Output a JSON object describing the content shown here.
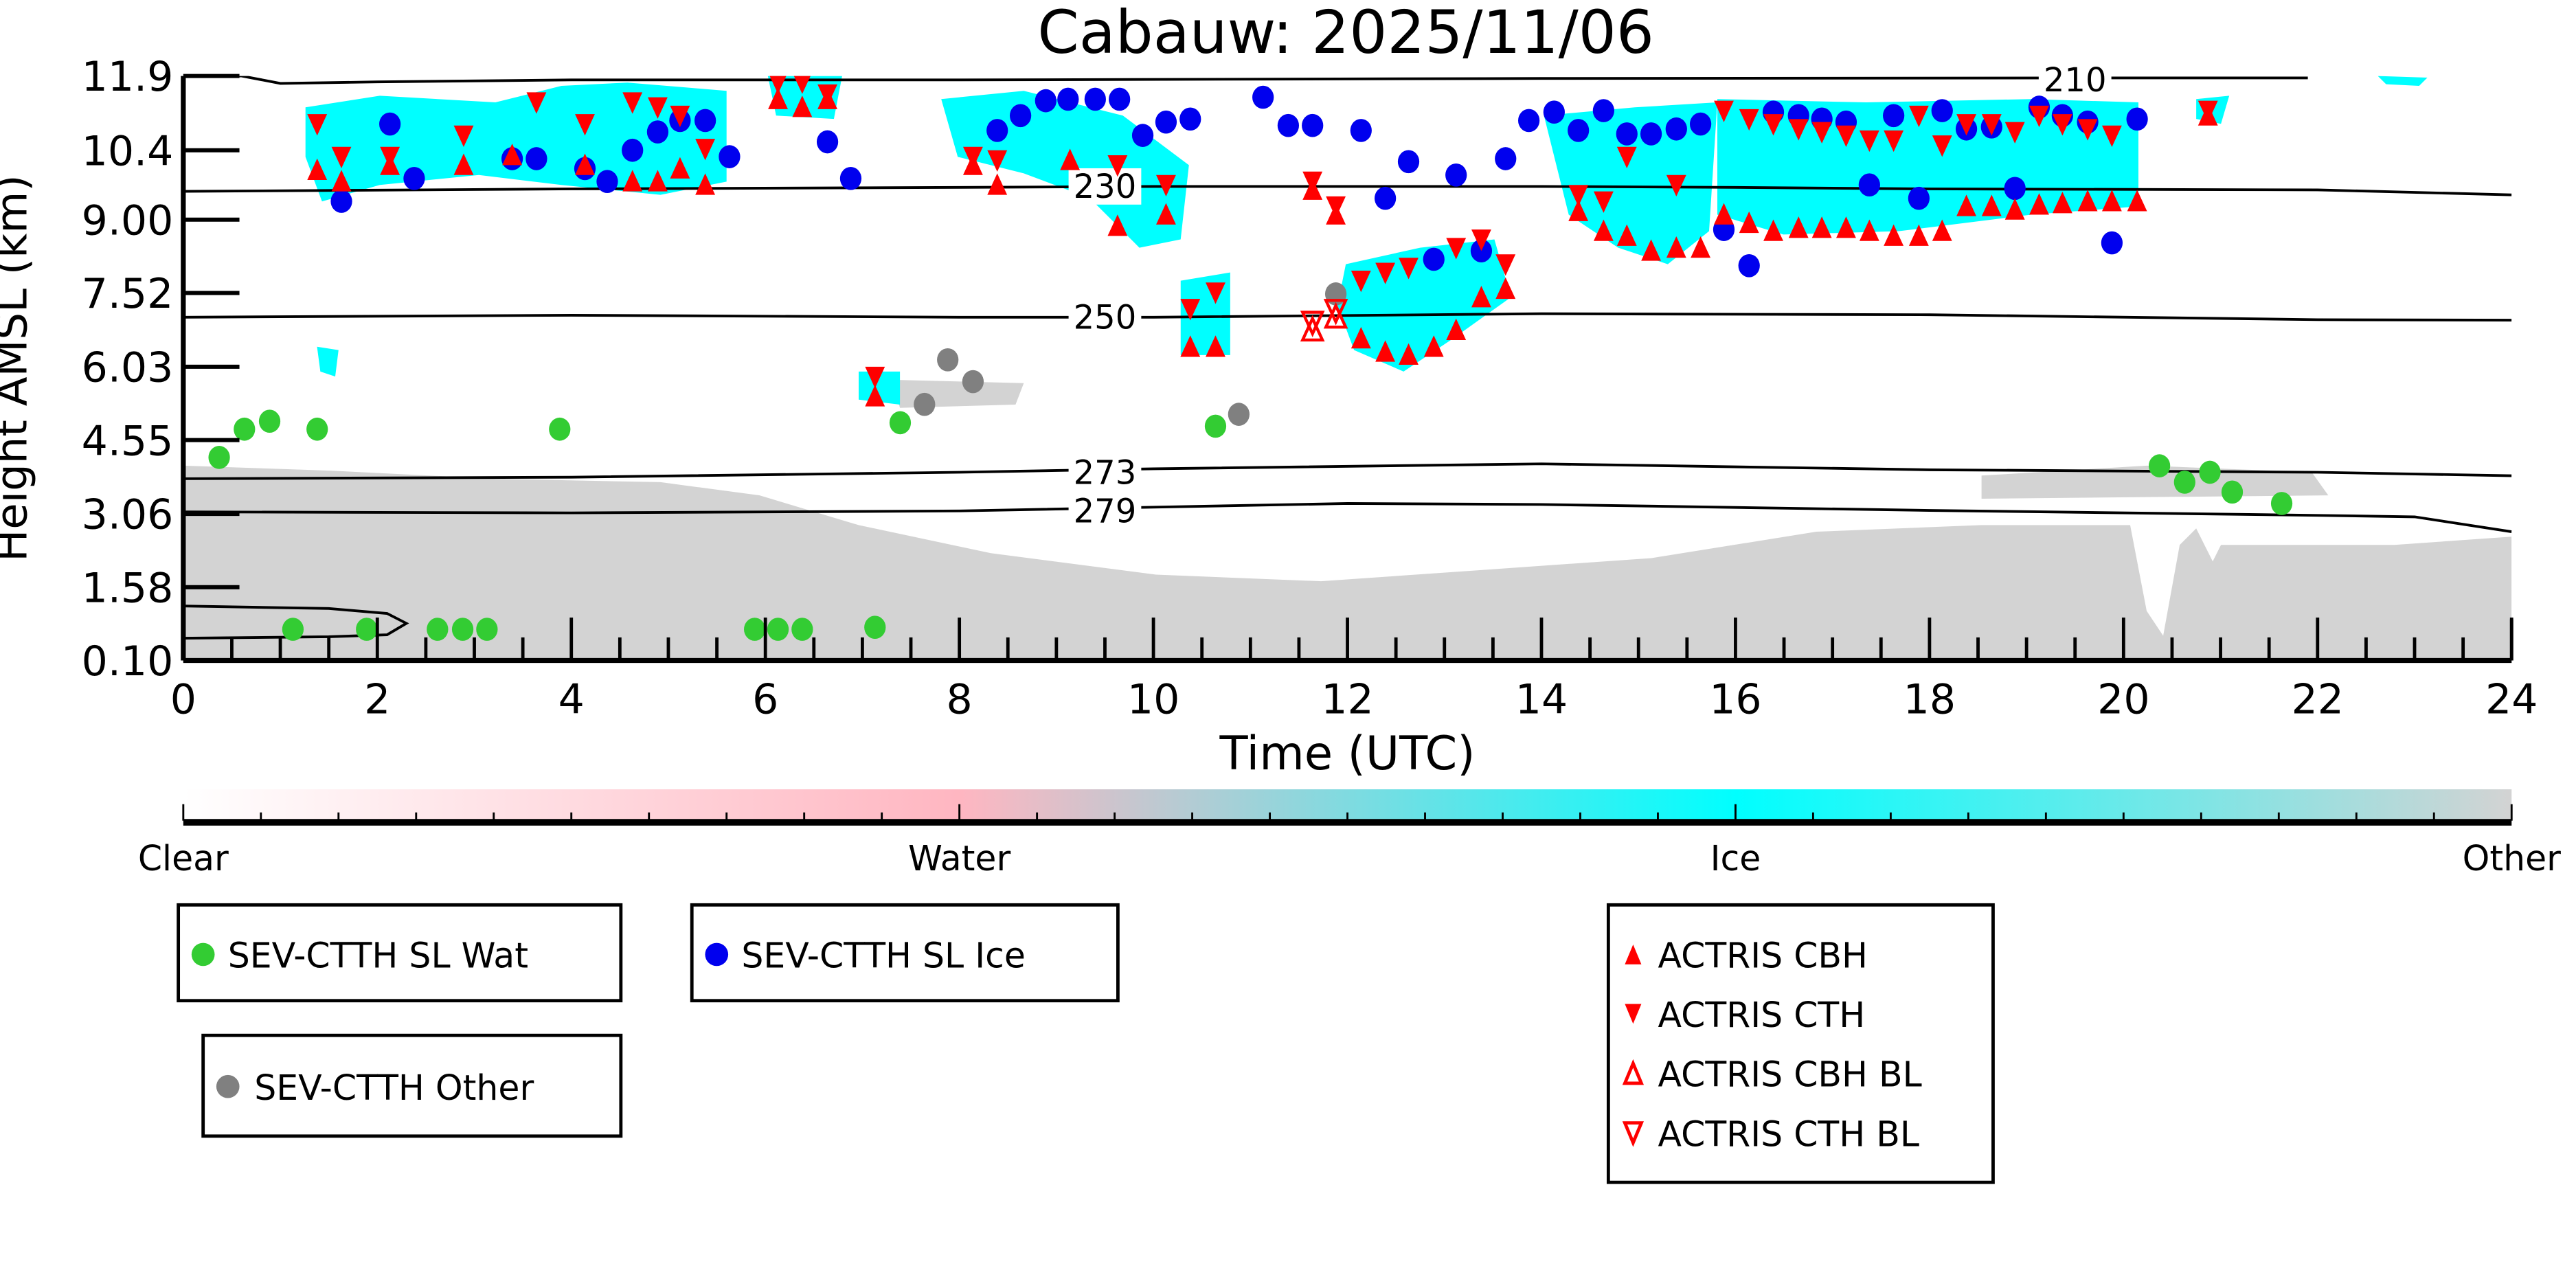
{
  "chart_data": {
    "type": "scatter",
    "title": "Cabauw: 2025/11/06",
    "xlabel": "Time (UTC)",
    "ylabel": "Height AMSL (km)",
    "xlim": [
      0,
      24
    ],
    "ylim": [
      0.1,
      11.9
    ],
    "x_ticks": [
      "0",
      "2",
      "4",
      "6",
      "8",
      "10",
      "12",
      "14",
      "16",
      "18",
      "20",
      "22",
      "24"
    ],
    "x_tick_values": [
      0,
      2,
      4,
      6,
      8,
      10,
      12,
      14,
      16,
      18,
      20,
      22,
      24
    ],
    "y_ticks": [
      "0.10",
      "1.58",
      "3.06",
      "4.55",
      "6.03",
      "7.52",
      "9.00",
      "10.4",
      "11.9"
    ],
    "y_tick_values": [
      0.1,
      1.58,
      3.06,
      4.55,
      6.03,
      7.52,
      9.0,
      10.4,
      11.9
    ],
    "colorbar": {
      "labels": [
        "Clear",
        "Water",
        "Ice",
        "Other"
      ],
      "colors": [
        "#ffffff",
        "#ffb6c1",
        "#00ffff",
        "#d3d3d3"
      ]
    },
    "temperature_contours": [
      {
        "label": "210",
        "points": [
          [
            0,
            11.9
          ],
          [
            0.6,
            11.9
          ],
          [
            1.0,
            11.75
          ],
          [
            2.0,
            11.78
          ],
          [
            4.0,
            11.82
          ],
          [
            8.0,
            11.82
          ],
          [
            14.0,
            11.85
          ],
          [
            19.5,
            11.86
          ],
          [
            21.9,
            11.86
          ]
        ],
        "label_at": [
          19.5,
          11.82
        ]
      },
      {
        "label": "230",
        "points": [
          [
            0,
            9.57
          ],
          [
            4,
            9.62
          ],
          [
            8,
            9.65
          ],
          [
            10,
            9.67
          ],
          [
            14,
            9.67
          ],
          [
            16,
            9.65
          ],
          [
            18,
            9.62
          ],
          [
            22,
            9.6
          ],
          [
            24,
            9.5
          ]
        ],
        "label_at": [
          9.5,
          9.67
        ]
      },
      {
        "label": "250",
        "points": [
          [
            0,
            7.03
          ],
          [
            4,
            7.07
          ],
          [
            8,
            7.03
          ],
          [
            10,
            7.03
          ],
          [
            14,
            7.1
          ],
          [
            18,
            7.08
          ],
          [
            22,
            6.98
          ],
          [
            24,
            6.97
          ]
        ],
        "label_at": [
          9.5,
          7.03
        ]
      },
      {
        "label": "273",
        "points": [
          [
            0,
            3.77
          ],
          [
            4,
            3.8
          ],
          [
            8,
            3.9
          ],
          [
            10,
            3.97
          ],
          [
            14,
            4.07
          ],
          [
            18,
            3.95
          ],
          [
            22,
            3.9
          ],
          [
            24,
            3.83
          ]
        ],
        "label_at": [
          9.5,
          3.9
        ]
      },
      {
        "label": "279",
        "points": [
          [
            0,
            3.1
          ],
          [
            4,
            3.08
          ],
          [
            8,
            3.12
          ],
          [
            12,
            3.27
          ],
          [
            14,
            3.25
          ],
          [
            18,
            3.13
          ],
          [
            22,
            3.03
          ],
          [
            23,
            3.0
          ],
          [
            24,
            2.7
          ]
        ],
        "label_at": [
          9.5,
          3.12
        ]
      },
      {
        "label": "",
        "points": [
          [
            0,
            1.2
          ],
          [
            1.5,
            1.15
          ],
          [
            2.1,
            1.05
          ],
          [
            2.3,
            0.85
          ],
          [
            2.1,
            0.62
          ],
          [
            1.5,
            0.58
          ],
          [
            0,
            0.55
          ]
        ],
        "label_at": null
      }
    ],
    "series": [
      {
        "name": "SEV-CTTH SL Wat",
        "marker": "circle",
        "color": "#33cc33",
        "points": [
          [
            0.37,
            4.2
          ],
          [
            0.63,
            4.77
          ],
          [
            0.89,
            4.93
          ],
          [
            1.38,
            4.77
          ],
          [
            3.88,
            4.77
          ],
          [
            7.39,
            4.9
          ],
          [
            10.64,
            4.83
          ],
          [
            20.37,
            4.03
          ],
          [
            20.63,
            3.7
          ],
          [
            20.89,
            3.9
          ],
          [
            21.12,
            3.5
          ],
          [
            21.63,
            3.27
          ],
          [
            1.13,
            0.73
          ],
          [
            1.89,
            0.73
          ],
          [
            2.62,
            0.73
          ],
          [
            2.88,
            0.73
          ],
          [
            3.13,
            0.73
          ],
          [
            5.89,
            0.73
          ],
          [
            6.13,
            0.73
          ],
          [
            6.38,
            0.73
          ],
          [
            7.13,
            0.77
          ]
        ]
      },
      {
        "name": "SEV-CTTH SL Ice",
        "marker": "circle",
        "color": "#0000ee",
        "points": [
          [
            1.63,
            9.37
          ],
          [
            2.13,
            10.93
          ],
          [
            2.38,
            9.83
          ],
          [
            3.39,
            10.23
          ],
          [
            3.64,
            10.23
          ],
          [
            4.14,
            10.03
          ],
          [
            4.37,
            9.77
          ],
          [
            4.63,
            10.4
          ],
          [
            4.89,
            10.77
          ],
          [
            5.12,
            11.0
          ],
          [
            5.38,
            11.0
          ],
          [
            5.63,
            10.27
          ],
          [
            6.64,
            10.57
          ],
          [
            6.88,
            9.83
          ],
          [
            8.39,
            10.8
          ],
          [
            8.63,
            11.1
          ],
          [
            8.89,
            11.4
          ],
          [
            9.12,
            11.43
          ],
          [
            9.4,
            11.43
          ],
          [
            9.65,
            11.43
          ],
          [
            9.89,
            10.7
          ],
          [
            10.13,
            10.97
          ],
          [
            10.38,
            11.03
          ],
          [
            11.13,
            11.47
          ],
          [
            11.39,
            10.9
          ],
          [
            11.64,
            10.9
          ],
          [
            12.14,
            10.8
          ],
          [
            12.39,
            9.43
          ],
          [
            12.63,
            10.17
          ],
          [
            12.89,
            8.2
          ],
          [
            13.12,
            9.9
          ],
          [
            13.38,
            8.37
          ],
          [
            13.63,
            10.23
          ],
          [
            13.87,
            11.0
          ],
          [
            14.13,
            11.17
          ],
          [
            14.38,
            10.8
          ],
          [
            14.64,
            11.2
          ],
          [
            14.88,
            10.73
          ],
          [
            15.13,
            10.73
          ],
          [
            15.39,
            10.83
          ],
          [
            15.64,
            10.93
          ],
          [
            15.88,
            8.8
          ],
          [
            16.14,
            8.07
          ],
          [
            16.39,
            11.17
          ],
          [
            16.65,
            11.1
          ],
          [
            16.89,
            11.03
          ],
          [
            17.14,
            10.97
          ],
          [
            17.38,
            9.7
          ],
          [
            17.63,
            11.1
          ],
          [
            17.89,
            9.43
          ],
          [
            18.13,
            11.2
          ],
          [
            18.38,
            10.83
          ],
          [
            18.64,
            10.87
          ],
          [
            18.88,
            9.63
          ],
          [
            19.13,
            11.27
          ],
          [
            19.37,
            11.1
          ],
          [
            19.63,
            10.97
          ],
          [
            19.88,
            8.53
          ],
          [
            20.14,
            11.03
          ]
        ]
      },
      {
        "name": "SEV-CTTH Other",
        "marker": "circle",
        "color": "#808080",
        "points": [
          [
            7.64,
            5.27
          ],
          [
            7.88,
            6.17
          ],
          [
            8.14,
            5.73
          ],
          [
            10.88,
            5.07
          ],
          [
            11.88,
            7.5
          ]
        ]
      },
      {
        "name": "ACTRIS CBH",
        "marker": "triangle-up",
        "color": "#ff0000",
        "points": [
          [
            1.38,
            10.0
          ],
          [
            1.63,
            9.77
          ],
          [
            2.13,
            10.1
          ],
          [
            2.89,
            10.1
          ],
          [
            3.39,
            10.3
          ],
          [
            4.14,
            10.1
          ],
          [
            4.63,
            9.77
          ],
          [
            4.89,
            9.77
          ],
          [
            5.12,
            10.03
          ],
          [
            5.38,
            9.7
          ],
          [
            6.13,
            11.43
          ],
          [
            6.38,
            11.27
          ],
          [
            6.64,
            11.43
          ],
          [
            7.13,
            5.43
          ],
          [
            8.14,
            10.1
          ],
          [
            8.39,
            9.7
          ],
          [
            9.14,
            10.2
          ],
          [
            9.63,
            8.87
          ],
          [
            10.13,
            9.1
          ],
          [
            10.38,
            6.43
          ],
          [
            10.64,
            6.43
          ],
          [
            11.64,
            9.6
          ],
          [
            11.88,
            9.1
          ],
          [
            12.14,
            6.6
          ],
          [
            12.39,
            6.33
          ],
          [
            12.63,
            6.27
          ],
          [
            12.89,
            6.43
          ],
          [
            13.12,
            6.77
          ],
          [
            13.38,
            7.43
          ],
          [
            13.63,
            7.6
          ],
          [
            14.38,
            9.17
          ],
          [
            14.64,
            8.77
          ],
          [
            14.88,
            8.67
          ],
          [
            15.13,
            8.37
          ],
          [
            15.39,
            8.43
          ],
          [
            15.64,
            8.43
          ],
          [
            15.88,
            9.1
          ],
          [
            16.14,
            8.93
          ],
          [
            16.39,
            8.77
          ],
          [
            16.65,
            8.83
          ],
          [
            16.89,
            8.83
          ],
          [
            17.14,
            8.83
          ],
          [
            17.38,
            8.77
          ],
          [
            17.63,
            8.67
          ],
          [
            17.89,
            8.67
          ],
          [
            18.13,
            8.77
          ],
          [
            18.38,
            9.27
          ],
          [
            18.64,
            9.27
          ],
          [
            18.88,
            9.2
          ],
          [
            19.13,
            9.3
          ],
          [
            19.37,
            9.33
          ],
          [
            19.63,
            9.37
          ],
          [
            19.88,
            9.37
          ],
          [
            20.14,
            9.37
          ],
          [
            20.87,
            11.1
          ]
        ]
      },
      {
        "name": "ACTRIS CTH",
        "marker": "triangle-down",
        "color": "#ff0000",
        "points": [
          [
            1.38,
            10.93
          ],
          [
            1.63,
            10.27
          ],
          [
            2.13,
            10.27
          ],
          [
            2.89,
            10.7
          ],
          [
            3.64,
            11.37
          ],
          [
            4.14,
            10.93
          ],
          [
            4.63,
            11.37
          ],
          [
            4.89,
            11.27
          ],
          [
            5.12,
            11.1
          ],
          [
            5.38,
            10.43
          ],
          [
            6.13,
            11.77
          ],
          [
            6.38,
            11.77
          ],
          [
            6.64,
            11.53
          ],
          [
            7.13,
            5.83
          ],
          [
            8.14,
            10.27
          ],
          [
            8.39,
            10.2
          ],
          [
            9.63,
            10.1
          ],
          [
            10.13,
            9.7
          ],
          [
            10.38,
            7.2
          ],
          [
            10.64,
            7.53
          ],
          [
            11.64,
            9.77
          ],
          [
            11.88,
            9.27
          ],
          [
            12.14,
            7.77
          ],
          [
            12.39,
            7.93
          ],
          [
            12.63,
            8.03
          ],
          [
            13.12,
            8.43
          ],
          [
            13.38,
            8.6
          ],
          [
            13.63,
            8.1
          ],
          [
            14.38,
            9.5
          ],
          [
            14.64,
            9.37
          ],
          [
            14.88,
            10.27
          ],
          [
            15.39,
            9.7
          ],
          [
            15.88,
            11.2
          ],
          [
            16.14,
            11.03
          ],
          [
            16.39,
            10.93
          ],
          [
            16.65,
            10.83
          ],
          [
            16.89,
            10.77
          ],
          [
            17.14,
            10.7
          ],
          [
            17.38,
            10.6
          ],
          [
            17.63,
            10.6
          ],
          [
            17.89,
            11.1
          ],
          [
            18.13,
            10.5
          ],
          [
            18.38,
            10.93
          ],
          [
            18.64,
            10.93
          ],
          [
            18.88,
            10.77
          ],
          [
            19.13,
            11.1
          ],
          [
            19.37,
            10.93
          ],
          [
            19.63,
            10.83
          ],
          [
            19.88,
            10.7
          ],
          [
            20.87,
            11.2
          ]
        ]
      },
      {
        "name": "ACTRIS CBH BL",
        "marker": "triangle-up-open",
        "color": "#ff0000",
        "points": [
          [
            11.64,
            6.77
          ],
          [
            11.88,
            7.03
          ]
        ]
      },
      {
        "name": "ACTRIS CTH BL",
        "marker": "triangle-down-open",
        "color": "#ff0000",
        "points": [
          [
            11.64,
            6.93
          ],
          [
            11.88,
            7.17
          ]
        ]
      }
    ],
    "legends": [
      {
        "entries": [
          "SEV-CTTH SL Wat"
        ]
      },
      {
        "entries": [
          "SEV-CTTH SL Ice"
        ]
      },
      {
        "entries": [
          "SEV-CTTH Other"
        ]
      },
      {
        "entries": [
          "ACTRIS CBH",
          "ACTRIS CTH",
          "ACTRIS CBH BL",
          "ACTRIS CTH BL"
        ]
      }
    ]
  }
}
